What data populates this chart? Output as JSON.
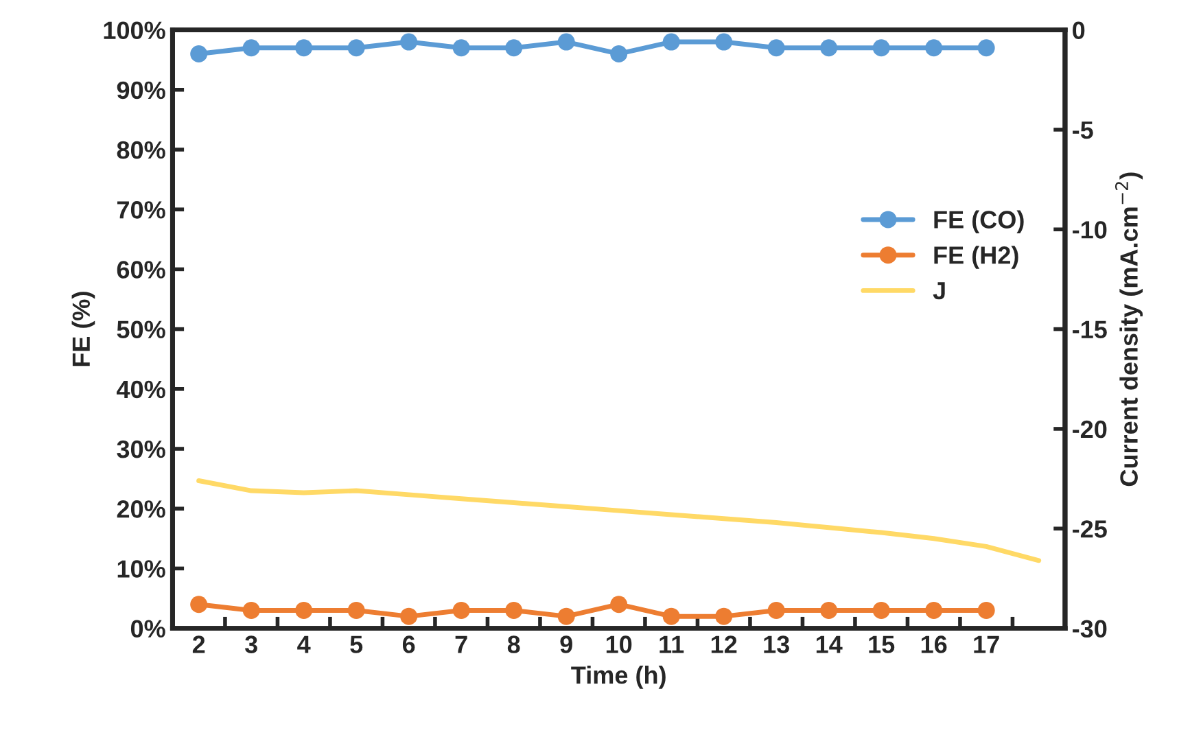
{
  "chart_data": {
    "type": "line",
    "xlabel": "Time (h)",
    "ylabel": "FE (%)",
    "y2label": "Current density (mA.cm$^{−2}$)",
    "categories": [
      "2",
      "3",
      "4",
      "5",
      "6",
      "7",
      "8",
      "9",
      "10",
      "11",
      "12",
      "13",
      "14",
      "15",
      "16",
      "17",
      null
    ],
    "series": [
      {
        "name": "FE (CO)",
        "color": "#5b9bd5",
        "marker": "circle",
        "values": [
          96,
          97,
          97,
          97,
          98,
          97,
          97,
          98,
          96,
          98,
          98,
          97,
          97,
          97,
          97,
          97,
          null
        ]
      },
      {
        "name": "FE (H2)",
        "color": "#ed7d31",
        "marker": "circle",
        "values": [
          4,
          3,
          3,
          3,
          2,
          3,
          3,
          2,
          4,
          2,
          2,
          3,
          3,
          3,
          3,
          3,
          null
        ]
      },
      {
        "name": "J",
        "color": "#ffd966",
        "marker": "none",
        "axis": "y2",
        "values": [
          -22.6,
          -23.1,
          -23.2,
          -23.1,
          -23.3,
          -23.5,
          -23.7,
          -23.9,
          -24.1,
          -24.3,
          -24.5,
          -24.7,
          -24.95,
          -25.2,
          -25.5,
          -25.9,
          -26.6
        ]
      }
    ],
    "ylim": [
      0,
      100
    ],
    "yticks": [
      {
        "value": 0,
        "label": "0%"
      },
      {
        "value": 10,
        "label": "10%"
      },
      {
        "value": 20,
        "label": "20%"
      },
      {
        "value": 30,
        "label": "30%"
      },
      {
        "value": 40,
        "label": "40%"
      },
      {
        "value": 50,
        "label": "50%"
      },
      {
        "value": 60,
        "label": "60%"
      },
      {
        "value": 70,
        "label": "70%"
      },
      {
        "value": 80,
        "label": "80%"
      },
      {
        "value": 90,
        "label": "90%"
      },
      {
        "value": 100,
        "label": "100%"
      }
    ],
    "y2lim": [
      -30,
      0
    ],
    "y2ticks": [
      -30,
      -25,
      -20,
      -15,
      -10,
      -5,
      0
    ],
    "legend": "right",
    "grid": false
  }
}
